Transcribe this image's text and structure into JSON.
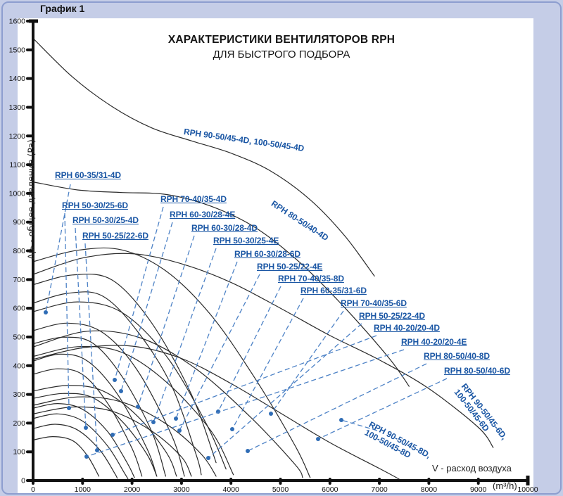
{
  "frame": {
    "graph_tag": "График 1"
  },
  "title": {
    "line1": "ХАРАКТЕРИСТИКИ ВЕНТИЛЯТОРОВ RPH",
    "line2": "ДЛЯ БЫСТРОГО ПОДБОРА"
  },
  "axes": {
    "x": {
      "label": "V -  расход воздуха",
      "unit": "(m³/h)",
      "range": [
        0,
        10000
      ],
      "ticks": [
        0,
        1000,
        2000,
        3000,
        4000,
        5000,
        6000,
        7000,
        8000,
        9000,
        10000
      ]
    },
    "y": {
      "label": "Δpₜ - общее давление  (Pa)",
      "range": [
        0,
        1600
      ],
      "ticks": [
        0,
        100,
        200,
        300,
        400,
        500,
        600,
        700,
        800,
        900,
        1000,
        1100,
        1200,
        1300,
        1400,
        1500,
        1600
      ]
    }
  },
  "colors": {
    "background": "#c5cde7",
    "plot": "#ffffff",
    "axis": "#111111",
    "curve": "#2b2b2b",
    "label": "#1a56a4",
    "leader": "#4d82c6",
    "dot": "#2f6cb5"
  },
  "chart_data": {
    "type": "line",
    "xlabel": "V - расход воздуха (m³/h)",
    "ylabel": "Δpt - общее давление (Pa)",
    "xlim": [
      0,
      10000
    ],
    "ylim": [
      0,
      1600
    ],
    "series": [
      {
        "name": "RPH 90-50/45-4D, 100-50/45-4D",
        "points": [
          [
            0,
            1540
          ],
          [
            800,
            1405
          ],
          [
            1600,
            1302
          ],
          [
            2400,
            1228
          ],
          [
            3200,
            1183
          ],
          [
            4000,
            1140
          ],
          [
            4800,
            1078
          ],
          [
            5600,
            978
          ],
          [
            6300,
            852
          ],
          [
            6900,
            712
          ]
        ],
        "label": {
          "lines": [
            "RPH 90-50/45-4D, 100-50/45-4D"
          ],
          "x": 262,
          "y": 181,
          "rot": 8,
          "underline": false
        }
      },
      {
        "name": "RPH 80-50/40-4D",
        "points": [
          [
            0,
            1040
          ],
          [
            900,
            1012
          ],
          [
            1800,
            1003
          ],
          [
            2700,
            996
          ],
          [
            3600,
            955
          ],
          [
            4500,
            880
          ],
          [
            5400,
            758
          ],
          [
            6300,
            602
          ],
          [
            7200,
            425
          ],
          [
            7600,
            328
          ]
        ],
        "label": {
          "lines": [
            "RPH 80-50/40-4D"
          ],
          "x": 390,
          "y": 283,
          "rot": 33,
          "underline": false
        }
      },
      {
        "name": "RPH 90-50/45-6D, 100-50/45-6D",
        "points": [
          [
            0,
            718
          ],
          [
            1000,
            775
          ],
          [
            2000,
            790
          ],
          [
            3000,
            755
          ],
          [
            4000,
            690
          ],
          [
            5000,
            600
          ],
          [
            6000,
            505
          ],
          [
            7000,
            420
          ],
          [
            8000,
            320
          ],
          [
            9000,
            185
          ],
          [
            9300,
            115
          ]
        ],
        "label": {
          "lines": [
            "RPH 90-50/45-6D,",
            "100-50/45-6D"
          ],
          "x": 663,
          "y": 543,
          "rot": 52,
          "underline": false
        }
      },
      {
        "name": "RPH 90-50/45-8D, 100-50/45-8D",
        "points": [
          [
            0,
            422
          ],
          [
            1000,
            462
          ],
          [
            2000,
            468
          ],
          [
            3000,
            425
          ],
          [
            4000,
            338
          ],
          [
            5000,
            235
          ],
          [
            6000,
            132
          ],
          [
            7000,
            42
          ],
          [
            7400,
            5
          ]
        ],
        "label": {
          "lines": [
            "RPH 90-50/45-8D,",
            "100-50/45-8D"
          ],
          "x": 528,
          "y": 597,
          "rot": 28,
          "underline": false
        },
        "dot": [
          485,
          597
        ],
        "leader": [
          [
            536,
            612
          ],
          [
            485,
            597
          ]
        ]
      },
      {
        "name": "RPH 60-35/31-4D",
        "points": [
          [
            0,
            588
          ],
          [
            900,
            622
          ],
          [
            1800,
            585
          ],
          [
            2700,
            432
          ],
          [
            3500,
            198
          ],
          [
            3900,
            40
          ]
        ],
        "label": {
          "lines": [
            "RPH 60-35/31-4D"
          ],
          "x": 78,
          "y": 243,
          "rot": 0,
          "underline": true
        },
        "dot": [
          65,
          444
        ],
        "leader": [
          [
            100,
            262
          ],
          [
            65,
            444
          ]
        ]
      },
      {
        "name": "RPH 50-30/25-6D",
        "points": [
          [
            0,
            252
          ],
          [
            500,
            268
          ],
          [
            1000,
            248
          ],
          [
            1500,
            172
          ],
          [
            1900,
            62
          ],
          [
            2050,
            10
          ]
        ],
        "label": {
          "lines": [
            "RPH 50-30/25-6D"
          ],
          "x": 88,
          "y": 286,
          "rot": 0,
          "underline": true
        },
        "dot": [
          98,
          580
        ],
        "leader": [
          [
            92,
            303
          ],
          [
            98,
            580
          ]
        ]
      },
      {
        "name": "RPH 50-30/25-4D",
        "points": [
          [
            0,
            522
          ],
          [
            700,
            548
          ],
          [
            1400,
            516
          ],
          [
            2100,
            386
          ],
          [
            2800,
            158
          ],
          [
            3060,
            15
          ]
        ],
        "label": {
          "lines": [
            "RPH 50-30/25-4D"
          ],
          "x": 103,
          "y": 307,
          "rot": 0,
          "underline": true
        },
        "dot": [
          122,
          608
        ],
        "leader": [
          [
            107,
            324
          ],
          [
            122,
            608
          ]
        ]
      },
      {
        "name": "RPH 50-25/22-6D",
        "points": [
          [
            0,
            181
          ],
          [
            450,
            196
          ],
          [
            900,
            176
          ],
          [
            1350,
            106
          ],
          [
            1650,
            25
          ],
          [
            1700,
            8
          ]
        ],
        "label": {
          "lines": [
            "RPH 50-25/22-6D"
          ],
          "x": 117,
          "y": 329,
          "rot": 0,
          "underline": true
        },
        "dot": [
          138,
          640
        ],
        "leader": [
          [
            121,
            346
          ],
          [
            138,
            640
          ]
        ]
      },
      {
        "name": "RPH 70-40/35-4D",
        "points": [
          [
            0,
            762
          ],
          [
            900,
            802
          ],
          [
            1800,
            803
          ],
          [
            2700,
            728
          ],
          [
            3600,
            575
          ],
          [
            4500,
            352
          ],
          [
            5300,
            120
          ],
          [
            5600,
            10
          ]
        ],
        "label": {
          "lines": [
            "RPH 70-40/35-4D"
          ],
          "x": 228,
          "y": 277,
          "rot": 0,
          "underline": true
        },
        "dot": [
          163,
          540
        ],
        "leader": [
          [
            232,
            294
          ],
          [
            163,
            540
          ]
        ]
      },
      {
        "name": "RPH 60-30/28-4E",
        "points": [
          [
            0,
            618
          ],
          [
            700,
            652
          ],
          [
            1400,
            643
          ],
          [
            2100,
            522
          ],
          [
            2800,
            330
          ],
          [
            3300,
            88
          ],
          [
            3400,
            20
          ]
        ],
        "label": {
          "lines": [
            "RPH 60-30/28-4E"
          ],
          "x": 241,
          "y": 299,
          "rot": 0,
          "underline": true
        },
        "dot": [
          172,
          556
        ],
        "leader": [
          [
            245,
            316
          ],
          [
            172,
            556
          ]
        ]
      },
      {
        "name": "RPH 60-30/28-4D",
        "points": [
          [
            0,
            682
          ],
          [
            800,
            716
          ],
          [
            1600,
            698
          ],
          [
            2400,
            548
          ],
          [
            3200,
            300
          ],
          [
            3700,
            62
          ]
        ],
        "label": {
          "lines": [
            "RPH 60-30/28-4D"
          ],
          "x": 272,
          "y": 318,
          "rot": 0,
          "underline": true
        },
        "dot": [
          196,
          578
        ],
        "leader": [
          [
            276,
            335
          ],
          [
            196,
            578
          ]
        ]
      },
      {
        "name": "RPH 50-30/25-4E",
        "points": [
          [
            0,
            476
          ],
          [
            600,
            499
          ],
          [
            1200,
            479
          ],
          [
            1800,
            362
          ],
          [
            2400,
            170
          ],
          [
            2680,
            15
          ]
        ],
        "label": {
          "lines": [
            "RPH 50-30/25-4E"
          ],
          "x": 303,
          "y": 336,
          "rot": 0,
          "underline": true
        },
        "dot": [
          218,
          600
        ],
        "leader": [
          [
            307,
            353
          ],
          [
            218,
            600
          ]
        ]
      },
      {
        "name": "RPH 60-30/28-6D",
        "points": [
          [
            0,
            286
          ],
          [
            600,
            303
          ],
          [
            1200,
            289
          ],
          [
            1800,
            206
          ],
          [
            2300,
            92
          ],
          [
            2500,
            15
          ]
        ],
        "label": {
          "lines": [
            "RPH 60-30/28-6D"
          ],
          "x": 333,
          "y": 355,
          "rot": 0,
          "underline": true
        },
        "dot": [
          250,
          595
        ],
        "leader": [
          [
            337,
            372
          ],
          [
            250,
            595
          ]
        ]
      },
      {
        "name": "RPH 50-25/22-4E",
        "points": [
          [
            0,
            370
          ],
          [
            500,
            389
          ],
          [
            1000,
            369
          ],
          [
            1500,
            271
          ],
          [
            2000,
            112
          ],
          [
            2200,
            15
          ]
        ],
        "label": {
          "lines": [
            "RPH 50-25/22-4E"
          ],
          "x": 365,
          "y": 373,
          "rot": 0,
          "underline": true
        },
        "dot": [
          255,
          612
        ],
        "leader": [
          [
            369,
            390
          ],
          [
            255,
            612
          ]
        ]
      },
      {
        "name": "RPH 70-40/35-8D",
        "points": [
          [
            0,
            232
          ],
          [
            800,
            256
          ],
          [
            1600,
            241
          ],
          [
            2400,
            172
          ],
          [
            3000,
            82
          ],
          [
            3200,
            15
          ]
        ],
        "label": {
          "lines": [
            "RPH 70-40/35-8D"
          ],
          "x": 395,
          "y": 390,
          "rot": 0,
          "underline": true
        },
        "dot": [
          310,
          585
        ],
        "leader": [
          [
            399,
            407
          ],
          [
            310,
            585
          ]
        ]
      },
      {
        "name": "RPH 60-35/31-6D",
        "points": [
          [
            0,
            312
          ],
          [
            700,
            331
          ],
          [
            1400,
            313
          ],
          [
            2100,
            226
          ],
          [
            2700,
            96
          ],
          [
            2900,
            15
          ]
        ],
        "label": {
          "lines": [
            "RPH 60-35/31-6D"
          ],
          "x": 427,
          "y": 407,
          "rot": 0,
          "underline": true
        },
        "dot": [
          330,
          610
        ],
        "leader": [
          [
            431,
            424
          ],
          [
            330,
            610
          ]
        ]
      },
      {
        "name": "RPH 70-40/35-6D",
        "points": [
          [
            0,
            432
          ],
          [
            900,
            466
          ],
          [
            1800,
            446
          ],
          [
            2700,
            342
          ],
          [
            3600,
            172
          ],
          [
            4050,
            20
          ]
        ],
        "label": {
          "lines": [
            "RPH 70-40/35-6D"
          ],
          "x": 484,
          "y": 425,
          "rot": 0,
          "underline": true
        },
        "dot": [
          385,
          588
        ],
        "leader": [
          [
            488,
            442
          ],
          [
            385,
            588
          ]
        ]
      },
      {
        "name": "RPH 50-25/22-4D",
        "points": [
          [
            0,
            416
          ],
          [
            550,
            440
          ],
          [
            1100,
            416
          ],
          [
            1700,
            302
          ],
          [
            2300,
            112
          ],
          [
            2500,
            15
          ]
        ],
        "label": {
          "lines": [
            "RPH 50-25/22-4D"
          ],
          "x": 510,
          "y": 443,
          "rot": 0,
          "underline": true
        },
        "dot": [
          296,
          651
        ],
        "leader": [
          [
            514,
            460
          ],
          [
            296,
            651
          ]
        ]
      },
      {
        "name": "RPH 40-20/20-4D",
        "points": [
          [
            0,
            216
          ],
          [
            500,
            232
          ],
          [
            1000,
            207
          ],
          [
            1500,
            122
          ],
          [
            1850,
            25
          ],
          [
            1920,
            5
          ]
        ],
        "label": {
          "lines": [
            "RPH 40-20/20-4D"
          ],
          "x": 531,
          "y": 460,
          "rot": 0,
          "underline": true
        },
        "dot": [
          160,
          618
        ],
        "leader": [
          [
            535,
            477
          ],
          [
            160,
            618
          ]
        ]
      },
      {
        "name": "RPH 40-20/20-4E",
        "points": [
          [
            0,
            141
          ],
          [
            400,
            153
          ],
          [
            800,
            139
          ],
          [
            1100,
            86
          ],
          [
            1330,
            15
          ]
        ],
        "label": {
          "lines": [
            "RPH 40-20/20-4E"
          ],
          "x": 570,
          "y": 480,
          "rot": 0,
          "underline": true
        },
        "dot": [
          123,
          649
        ],
        "leader": [
          [
            574,
            497
          ],
          [
            123,
            649
          ]
        ]
      },
      {
        "name": "RPH 80-50/40-8D",
        "points": [
          [
            0,
            262
          ],
          [
            900,
            291
          ],
          [
            1800,
            273
          ],
          [
            2700,
            196
          ],
          [
            3400,
            92
          ],
          [
            3700,
            15
          ]
        ],
        "label": {
          "lines": [
            "RPH 80-50/40-8D"
          ],
          "x": 602,
          "y": 500,
          "rot": 0,
          "underline": true
        },
        "dot": [
          352,
          641
        ],
        "leader": [
          [
            606,
            517
          ],
          [
            352,
            641
          ]
        ]
      },
      {
        "name": "RPH 80-50/40-6D",
        "points": [
          [
            0,
            465
          ],
          [
            1100,
            520
          ],
          [
            2200,
            495
          ],
          [
            3300,
            388
          ],
          [
            4400,
            220
          ],
          [
            5300,
            55
          ],
          [
            5450,
            10
          ]
        ],
        "label": {
          "lines": [
            "RPH 80-50/40-6D"
          ],
          "x": 631,
          "y": 521,
          "rot": 0,
          "underline": true
        },
        "dot": [
          452,
          624
        ],
        "leader": [
          [
            635,
            538
          ],
          [
            452,
            624
          ]
        ]
      }
    ]
  }
}
